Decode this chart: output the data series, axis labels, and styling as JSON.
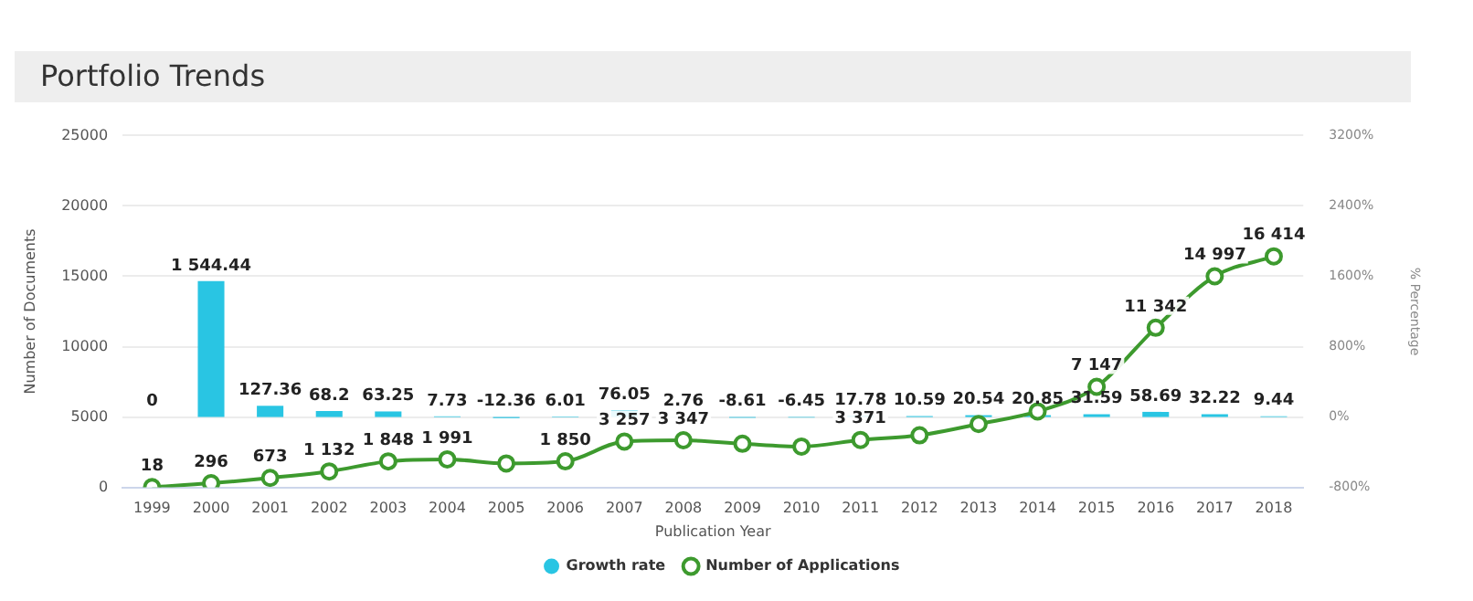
{
  "chart_data": {
    "type": "bar",
    "title": "Portfolio Trends",
    "xlabel": "Publication Year",
    "ylabel": "Number of Documents",
    "y2label": "% Percentage",
    "categories": [
      "1999",
      "2000",
      "2001",
      "2002",
      "2003",
      "2004",
      "2005",
      "2006",
      "2007",
      "2008",
      "2009",
      "2010",
      "2011",
      "2012",
      "2013",
      "2014",
      "2015",
      "2016",
      "2017",
      "2018"
    ],
    "series": [
      {
        "name": "Growth rate",
        "axis": "y2",
        "color": "#29c5e3",
        "values": [
          0,
          1544.44,
          127.36,
          68.2,
          63.25,
          7.73,
          -12.36,
          6.01,
          76.05,
          2.76,
          -8.61,
          -6.45,
          17.78,
          10.59,
          20.54,
          20.85,
          31.59,
          58.69,
          32.22,
          9.44
        ],
        "value_labels": [
          "0",
          "1 544.44",
          "127.36",
          "68.2",
          "63.25",
          "7.73",
          "-12.36",
          "6.01",
          "76.05",
          "2.76",
          "-8.61",
          "-6.45",
          "17.78",
          "10.59",
          "20.54",
          "20.85",
          "31.59",
          "58.69",
          "32.22",
          "9.44"
        ]
      },
      {
        "name": "Number of Applications",
        "type": "line",
        "axis": "y",
        "color": "#3d9a2e",
        "marker": "circle",
        "values": [
          18,
          296,
          673,
          1132,
          1848,
          1991,
          1700,
          1850,
          3257,
          3347,
          3100,
          2900,
          3371,
          3700,
          4500,
          5400,
          7147,
          11342,
          14997,
          16414
        ],
        "value_labels": [
          "18",
          "296",
          "673",
          "1 132",
          "1 848",
          "1 991",
          null,
          "1 850",
          "3 257",
          "3 347",
          null,
          null,
          "3 371",
          null,
          null,
          null,
          "7 147",
          "11 342",
          "14 997",
          "16 414"
        ]
      }
    ],
    "ylim": [
      0,
      25000
    ],
    "yticks": [
      0,
      5000,
      10000,
      15000,
      20000,
      25000
    ],
    "y2lim": [
      -800,
      3200
    ],
    "y2ticks": [
      {
        "value": -800,
        "label": "-800%"
      },
      {
        "value": 0,
        "label": "0%"
      },
      {
        "value": 800,
        "label": "800%"
      },
      {
        "value": 1600,
        "label": "1600%"
      },
      {
        "value": 2400,
        "label": "2400%"
      },
      {
        "value": 3200,
        "label": "3200%"
      }
    ],
    "grid": "y",
    "legend": "bottom"
  }
}
